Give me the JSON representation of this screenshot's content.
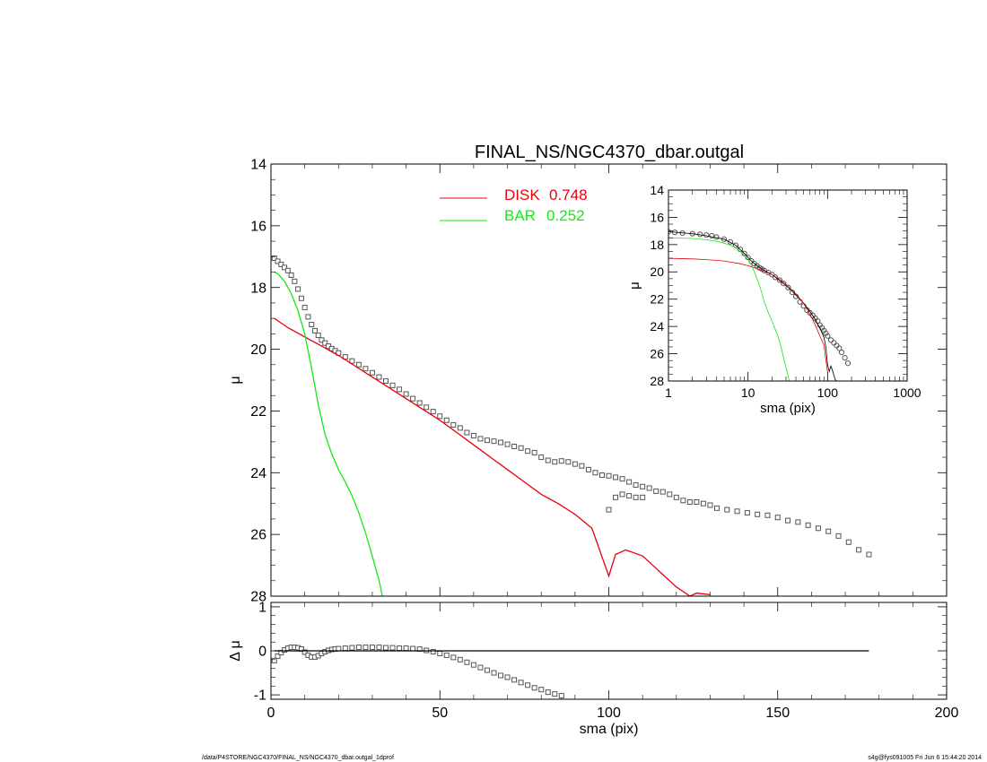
{
  "title": "FINAL_NS/NGC4370_dbar.outgal",
  "footer": {
    "left": "/data/P4STORE/NGC4370/FINAL_NS/NGC4370_dbar.outgal_1dprof",
    "right": "s4g@fys091005  Fri Jun  6 15:44:20 2014"
  },
  "legend": [
    {
      "name": "DISK",
      "value": "0.748",
      "color": "#e8000b"
    },
    {
      "name": "BAR",
      "value": "0.252",
      "color": "#19e619"
    }
  ],
  "chart_data": [
    {
      "id": "main",
      "type": "scatter",
      "xlabel": "sma (pix)",
      "ylabel": "μ",
      "xlim": [
        0,
        200
      ],
      "ylim": [
        28,
        14
      ],
      "xticks": [
        0,
        50,
        100,
        150,
        200
      ],
      "yticks": [
        14,
        16,
        18,
        20,
        22,
        24,
        26,
        28
      ],
      "series": [
        {
          "name": "data",
          "style": "squares",
          "color": "#555555",
          "x": [
            1,
            2,
            3,
            4,
            5,
            6,
            7,
            8,
            9,
            10,
            11,
            12,
            13,
            14,
            15,
            16,
            17,
            18,
            19,
            20,
            22,
            24,
            26,
            28,
            30,
            32,
            34,
            36,
            38,
            40,
            42,
            44,
            46,
            48,
            50,
            52,
            54,
            56,
            58,
            60,
            62,
            64,
            66,
            68,
            70,
            72,
            74,
            76,
            78,
            80,
            82,
            84,
            86,
            88,
            90,
            92,
            94,
            96,
            98,
            100,
            102,
            104,
            106,
            108,
            110,
            112,
            114,
            116,
            118,
            120,
            122,
            124,
            126,
            128,
            130,
            132,
            135,
            138,
            141,
            144,
            147,
            150,
            153,
            156,
            159,
            162,
            165,
            168,
            171,
            174,
            177
          ],
          "y": [
            17.05,
            17.15,
            17.25,
            17.35,
            17.45,
            17.6,
            17.8,
            18.05,
            18.35,
            18.65,
            18.95,
            19.2,
            19.4,
            19.55,
            19.7,
            19.8,
            19.9,
            19.98,
            20.05,
            20.12,
            20.25,
            20.38,
            20.5,
            20.63,
            20.76,
            20.9,
            21.03,
            21.17,
            21.3,
            21.45,
            21.6,
            21.74,
            21.88,
            22.02,
            22.17,
            22.3,
            22.45,
            22.55,
            22.7,
            22.8,
            22.9,
            22.95,
            22.98,
            23.02,
            23.08,
            23.15,
            23.2,
            23.3,
            23.35,
            23.5,
            23.6,
            23.65,
            23.62,
            23.65,
            23.72,
            23.78,
            23.9,
            24.0,
            24.08,
            24.1,
            24.15,
            24.2,
            24.3,
            24.4,
            24.45,
            24.5,
            24.6,
            24.62,
            24.7,
            24.8,
            24.9,
            24.95,
            24.95,
            25.0,
            25.05,
            25.15,
            25.2,
            25.25,
            25.3,
            25.35,
            25.38,
            25.45,
            25.55,
            25.6,
            25.7,
            25.8,
            25.9,
            26.05,
            26.25,
            26.5,
            26.65
          ],
          "note_outliers": [
            [
              100,
              25.2
            ],
            [
              102,
              24.8
            ],
            [
              104,
              24.7
            ],
            [
              106,
              24.75
            ],
            [
              108,
              24.8
            ],
            [
              110,
              24.8
            ]
          ]
        },
        {
          "name": "DISK",
          "style": "line",
          "color": "#e8000b",
          "x": [
            1,
            5,
            10,
            15,
            20,
            25,
            30,
            35,
            40,
            45,
            50,
            55,
            60,
            65,
            70,
            75,
            80,
            85,
            90,
            95,
            100,
            102,
            105,
            110,
            115,
            120,
            124,
            126,
            130
          ],
          "y": [
            19.0,
            19.3,
            19.6,
            19.9,
            20.2,
            20.55,
            20.9,
            21.25,
            21.6,
            21.95,
            22.3,
            22.7,
            23.1,
            23.5,
            23.9,
            24.3,
            24.7,
            25.0,
            25.35,
            25.8,
            27.35,
            26.65,
            26.5,
            26.7,
            27.2,
            27.7,
            28.0,
            27.9,
            27.95
          ]
        },
        {
          "name": "BAR",
          "style": "line",
          "color": "#19e619",
          "x": [
            1,
            2,
            4,
            6,
            8,
            10,
            12,
            14,
            16,
            18,
            20,
            22,
            24,
            26,
            28,
            30,
            32,
            33
          ],
          "y": [
            17.5,
            17.55,
            17.8,
            18.2,
            18.75,
            19.5,
            20.6,
            21.8,
            22.75,
            23.4,
            23.9,
            24.3,
            24.75,
            25.3,
            25.95,
            26.7,
            27.5,
            28.0
          ]
        }
      ]
    },
    {
      "id": "residual",
      "type": "scatter",
      "xlabel": "sma (pix)",
      "ylabel": "Δ μ",
      "xlim": [
        0,
        200
      ],
      "ylim": [
        -1.1,
        1.1
      ],
      "xticks": [
        0,
        50,
        100,
        150,
        200
      ],
      "yticks": [
        1,
        0,
        -1
      ],
      "series": [
        {
          "name": "residual",
          "style": "squares",
          "color": "#555555",
          "x": [
            1,
            2,
            3,
            4,
            5,
            6,
            7,
            8,
            9,
            10,
            11,
            12,
            13,
            14,
            15,
            16,
            17,
            18,
            19,
            20,
            22,
            24,
            26,
            28,
            30,
            32,
            34,
            36,
            38,
            40,
            42,
            44,
            46,
            48,
            50,
            52,
            54,
            56,
            58,
            60,
            62,
            64,
            66,
            68,
            70,
            72,
            74,
            76,
            78,
            80,
            82,
            84,
            86
          ],
          "y": [
            -0.22,
            -0.12,
            -0.04,
            0.02,
            0.06,
            0.08,
            0.08,
            0.07,
            0.04,
            -0.03,
            -0.1,
            -0.14,
            -0.14,
            -0.11,
            -0.06,
            -0.02,
            0.01,
            0.03,
            0.04,
            0.05,
            0.06,
            0.07,
            0.08,
            0.08,
            0.08,
            0.08,
            0.07,
            0.07,
            0.06,
            0.06,
            0.05,
            0.04,
            0.01,
            -0.02,
            -0.06,
            -0.1,
            -0.15,
            -0.2,
            -0.26,
            -0.32,
            -0.38,
            -0.44,
            -0.5,
            -0.56,
            -0.6,
            -0.66,
            -0.72,
            -0.78,
            -0.84,
            -0.88,
            -0.94,
            -0.98,
            -1.02
          ]
        },
        {
          "name": "zero",
          "style": "line",
          "color": "#000000",
          "x": [
            1,
            177
          ],
          "y": [
            0,
            0
          ]
        }
      ]
    },
    {
      "id": "inset",
      "type": "line",
      "xlabel": "sma (pix)",
      "ylabel": "μ",
      "xscale": "log",
      "xlim": [
        1,
        1000
      ],
      "ylim": [
        28,
        14
      ],
      "xticks": [
        1,
        10,
        100,
        1000
      ],
      "yticks": [
        14,
        16,
        18,
        20,
        22,
        24,
        26,
        28
      ],
      "series": [
        {
          "name": "data",
          "style": "circles",
          "color": "#555555",
          "x": [
            1,
            1.2,
            1.5,
            2,
            2.5,
            3,
            3.5,
            4,
            5,
            6,
            7,
            8,
            9,
            10,
            11,
            12,
            13,
            14,
            15,
            16,
            18,
            20,
            22,
            25,
            28,
            32,
            36,
            40,
            45,
            50,
            55,
            60,
            65,
            70,
            75,
            80,
            85,
            90,
            95,
            100,
            110,
            120,
            130,
            140,
            150,
            165,
            180
          ],
          "y": [
            17.05,
            17.1,
            17.15,
            17.2,
            17.25,
            17.3,
            17.35,
            17.45,
            17.6,
            17.8,
            18.05,
            18.35,
            18.65,
            18.95,
            19.2,
            19.4,
            19.55,
            19.7,
            19.8,
            19.9,
            20.05,
            20.2,
            20.4,
            20.6,
            20.85,
            21.15,
            21.5,
            21.8,
            22.2,
            22.5,
            22.8,
            23.0,
            23.2,
            23.4,
            23.6,
            23.9,
            24.1,
            24.3,
            24.5,
            24.7,
            25.0,
            25.2,
            25.4,
            25.6,
            25.9,
            26.3,
            26.7
          ]
        },
        {
          "name": "model",
          "style": "line",
          "color": "#000000",
          "x": [
            1,
            2,
            3,
            5,
            7,
            9,
            11,
            13,
            15,
            20,
            30,
            40,
            50,
            60,
            70,
            80,
            90,
            95,
            100,
            105,
            110,
            115,
            120,
            125,
            130
          ],
          "y": [
            17.05,
            17.2,
            17.35,
            17.6,
            18.05,
            18.65,
            19.2,
            19.55,
            19.8,
            20.2,
            21.0,
            21.7,
            22.3,
            22.9,
            23.5,
            24.1,
            24.8,
            25.5,
            26.8,
            27.3,
            26.9,
            27.2,
            27.6,
            27.9,
            28.0
          ]
        },
        {
          "name": "DISK",
          "style": "line",
          "color": "#e8000b",
          "x": [
            1,
            2,
            3,
            5,
            8,
            10,
            12,
            15,
            20,
            25,
            30,
            40,
            50,
            60,
            70,
            80,
            90,
            100
          ],
          "y": [
            19.0,
            19.05,
            19.1,
            19.2,
            19.4,
            19.55,
            19.7,
            19.9,
            20.2,
            20.55,
            20.9,
            21.6,
            22.3,
            23.1,
            23.9,
            24.7,
            25.35,
            27.35
          ]
        },
        {
          "name": "BAR",
          "style": "line",
          "color": "#19e619",
          "x": [
            1,
            2,
            3,
            4,
            5,
            6,
            7,
            8,
            9,
            10,
            11,
            12,
            14,
            16,
            18,
            20,
            22,
            24,
            26,
            28,
            30,
            32,
            33
          ],
          "y": [
            17.5,
            17.55,
            17.65,
            17.75,
            17.9,
            18.05,
            18.25,
            18.5,
            18.75,
            19.1,
            19.5,
            20.0,
            21.0,
            22.2,
            23.0,
            23.6,
            24.2,
            24.8,
            25.5,
            26.3,
            27.0,
            27.7,
            28.0
          ]
        }
      ]
    }
  ]
}
